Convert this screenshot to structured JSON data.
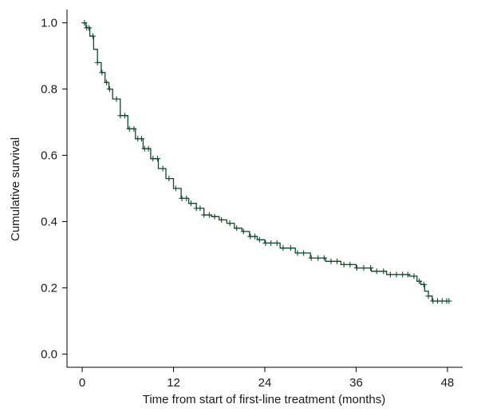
{
  "chart_data": {
    "type": "line",
    "subtype": "kaplan-meier-survival",
    "title": "",
    "xlabel": "Time from start of first-line treatment (months)",
    "ylabel": "Cumulative survival",
    "xlim": [
      -2,
      50
    ],
    "ylim": [
      -0.04,
      1.04
    ],
    "xticks": [
      0,
      12,
      24,
      36,
      48
    ],
    "yticks": [
      0.0,
      0.2,
      0.4,
      0.6,
      0.8,
      1.0
    ],
    "xtick_labels": [
      "0",
      "12",
      "24",
      "36",
      "48"
    ],
    "ytick_labels": [
      "0.0",
      "0.2",
      "0.4",
      "0.6",
      "0.8",
      "1.0"
    ],
    "grid": false,
    "legend": "none",
    "line_color": "#0f4a2e",
    "series": [
      {
        "x": [
          0,
          0.5,
          1.0,
          1.5,
          2.0,
          2.5,
          3.0,
          3.5,
          4.0,
          5.0,
          6.0,
          7.0,
          8.0,
          9.0,
          10.0,
          11.0,
          12.0,
          13.0,
          14.0,
          15.0,
          16.0,
          17.0,
          18.0,
          19.0,
          20.0,
          21.0,
          22.0,
          23.0,
          24.0,
          26.0,
          28.0,
          30.0,
          32.0,
          34.0,
          36.0,
          38.0,
          40.0,
          42.0,
          43.0,
          44.0,
          44.5,
          45.0,
          45.5,
          46.0,
          48.0
        ],
        "y": [
          1.0,
          0.985,
          0.96,
          0.92,
          0.88,
          0.85,
          0.82,
          0.8,
          0.77,
          0.72,
          0.68,
          0.65,
          0.62,
          0.59,
          0.56,
          0.53,
          0.5,
          0.47,
          0.455,
          0.44,
          0.42,
          0.415,
          0.405,
          0.395,
          0.38,
          0.37,
          0.355,
          0.345,
          0.335,
          0.32,
          0.305,
          0.29,
          0.28,
          0.27,
          0.26,
          0.25,
          0.24,
          0.24,
          0.235,
          0.22,
          0.21,
          0.19,
          0.175,
          0.16,
          0.16
        ]
      }
    ],
    "censor_x": [
      0.3,
      0.6,
      0.9,
      1.4,
      2.0,
      2.6,
      3.2,
      3.6,
      4.5,
      5.0,
      5.6,
      6.2,
      6.8,
      7.3,
      7.8,
      8.2,
      8.7,
      9.3,
      9.9,
      10.6,
      11.4,
      12.3,
      13.1,
      13.7,
      14.3,
      15.0,
      15.5,
      16.0,
      16.7,
      17.4,
      18.3,
      19.4,
      20.3,
      21.2,
      22.1,
      22.7,
      23.3,
      24.1,
      24.8,
      25.6,
      26.4,
      27.4,
      28.3,
      29.1,
      30.1,
      31.0,
      31.8,
      32.7,
      33.5,
      34.4,
      35.2,
      36.1,
      37.0,
      37.9,
      38.7,
      39.6,
      40.5,
      41.3,
      42.1,
      42.8,
      43.6,
      44.3,
      44.9,
      45.5,
      46.1,
      46.7,
      47.3,
      47.9,
      48.2
    ]
  }
}
